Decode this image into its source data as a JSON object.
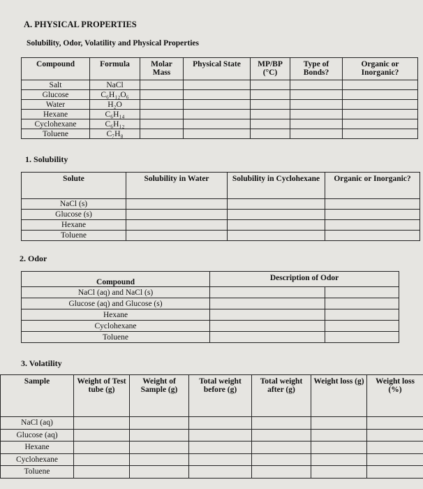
{
  "section_a": {
    "title": "A. PHYSICAL PROPERTIES",
    "subtitle": "Solubility, Odor, Volatility and Physical Properties"
  },
  "properties_table": {
    "headers": [
      "Compound",
      "Formula",
      "Molar Mass",
      "Physical State",
      "MP/BP (°C)",
      "Type of Bonds?",
      "Organic or Inorganic?"
    ],
    "rows": [
      [
        "Salt",
        "NaCl"
      ],
      [
        "Glucose",
        "C₆H₁₂O₆"
      ],
      [
        "Water",
        "H₂O"
      ],
      [
        "Hexane",
        "C₆H₁₄"
      ],
      [
        "Cyclohexane",
        "C₆H₁₂"
      ],
      [
        "Toluene",
        "C₇H₈"
      ]
    ]
  },
  "solubility": {
    "title": "1. Solubility",
    "headers": [
      "Solute",
      "Solubility in Water",
      "Solubility in Cyclohexane",
      "Organic or Inorganic?"
    ],
    "rows": [
      "NaCl (s)",
      "Glucose (s)",
      "Hexane",
      "Toluene"
    ]
  },
  "odor": {
    "title": "2. Odor",
    "headers": [
      "Compound",
      "Description of Odor"
    ],
    "rows": [
      "NaCl (aq) and NaCl (s)",
      "Glucose (aq) and Glucose (s)",
      "Hexane",
      "Cyclohexane",
      "Toluene"
    ]
  },
  "volatility": {
    "title": "3. Volatility",
    "headers": [
      "Sample",
      "Weight of Test tube (g)",
      "Weight of Sample (g)",
      "Total weight before (g)",
      "Total weight after (g)",
      "Weight loss (g)",
      "Weight loss (%)"
    ],
    "rows": [
      "NaCl (aq)",
      "Glucose (aq)",
      "Hexane",
      "Cyclohexane",
      "Toluene"
    ]
  }
}
